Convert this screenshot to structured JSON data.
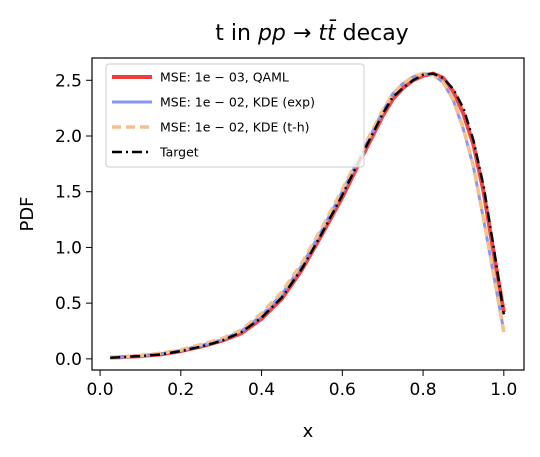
{
  "chart_data": {
    "type": "line",
    "title_parts": [
      "t in ",
      "pp",
      " → ",
      "t",
      "t̄",
      " decay"
    ],
    "xlabel": "x",
    "ylabel": "PDF",
    "xlim": [
      -0.02,
      1.05
    ],
    "ylim": [
      -0.1,
      2.7
    ],
    "xticks": [
      0.0,
      0.2,
      0.4,
      0.6,
      0.8,
      1.0
    ],
    "xtick_labels": [
      "0.0",
      "0.2",
      "0.4",
      "0.6",
      "0.8",
      "1.0"
    ],
    "yticks": [
      0.0,
      0.5,
      1.0,
      1.5,
      2.0,
      2.5
    ],
    "ytick_labels": [
      "0.0",
      "0.5",
      "1.0",
      "1.5",
      "2.0",
      "2.5"
    ],
    "legend_position": "upper-left",
    "grid": false,
    "x": [
      0.025,
      0.05,
      0.1,
      0.15,
      0.2,
      0.25,
      0.3,
      0.35,
      0.4,
      0.45,
      0.5,
      0.55,
      0.6,
      0.65,
      0.7,
      0.725,
      0.75,
      0.775,
      0.8,
      0.825,
      0.85,
      0.875,
      0.9,
      0.925,
      0.95,
      0.975,
      1.0
    ],
    "series": [
      {
        "name": "MSE: 1e − 03, QAML",
        "color": "#f03c3c",
        "style": "solid",
        "width": 4,
        "values": [
          0.01,
          0.015,
          0.025,
          0.04,
          0.07,
          0.11,
          0.16,
          0.23,
          0.36,
          0.54,
          0.8,
          1.12,
          1.45,
          1.82,
          2.18,
          2.33,
          2.43,
          2.5,
          2.54,
          2.56,
          2.52,
          2.4,
          2.2,
          1.92,
          1.5,
          0.95,
          0.42
        ]
      },
      {
        "name": "MSE: 1e − 02, KDE (exp)",
        "color": "#8a95f5",
        "style": "solid",
        "width": 3,
        "values": [
          0.01,
          0.015,
          0.025,
          0.045,
          0.075,
          0.12,
          0.17,
          0.25,
          0.39,
          0.58,
          0.84,
          1.16,
          1.5,
          1.86,
          2.22,
          2.38,
          2.47,
          2.53,
          2.56,
          2.55,
          2.48,
          2.32,
          2.06,
          1.72,
          1.25,
          0.75,
          0.25
        ]
      },
      {
        "name": "MSE: 1e − 02, KDE (t-h)",
        "color": "#f5c08c",
        "style": "dashed",
        "width": 3.5,
        "values": [
          0.01,
          0.015,
          0.03,
          0.05,
          0.08,
          0.13,
          0.18,
          0.26,
          0.41,
          0.6,
          0.86,
          1.18,
          1.52,
          1.88,
          2.23,
          2.38,
          2.47,
          2.53,
          2.56,
          2.55,
          2.48,
          2.33,
          2.07,
          1.73,
          1.26,
          0.76,
          0.24
        ]
      },
      {
        "name": "Target",
        "color": "#000000",
        "style": "dashdot",
        "width": 2.5,
        "values": [
          0.01,
          0.015,
          0.025,
          0.04,
          0.07,
          0.11,
          0.16,
          0.24,
          0.37,
          0.55,
          0.81,
          1.13,
          1.47,
          1.84,
          2.2,
          2.35,
          2.43,
          2.5,
          2.55,
          2.56,
          2.52,
          2.42,
          2.25,
          1.96,
          1.55,
          1.0,
          0.4
        ]
      }
    ]
  }
}
